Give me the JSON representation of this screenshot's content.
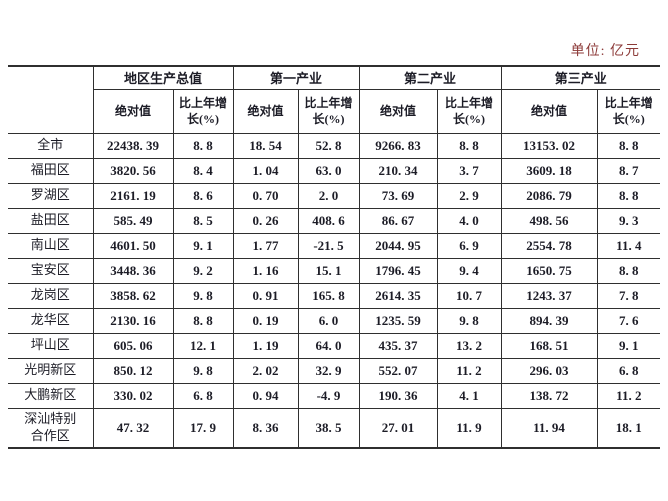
{
  "page": {
    "unit_label": "单位: 亿元"
  },
  "colors": {
    "unit_text": "#8c3a38",
    "table_text": "#1c1c26",
    "border": "#2f2f2f"
  },
  "table": {
    "header": {
      "corner": "",
      "groups": [
        "地区生产总值",
        "第一产业",
        "第二产业",
        "第三产业"
      ],
      "sub_abs": "绝对值",
      "sub_growth": "比上年增\n长(%)"
    },
    "rows": [
      {
        "name": "全市",
        "values": [
          "22438.39",
          "8.8",
          "18.54",
          "52.8",
          "9266.83",
          "8.8",
          "13153.02",
          "8.8"
        ]
      },
      {
        "name": "福田区",
        "values": [
          "3820.56",
          "8.4",
          "1.04",
          "63.0",
          "210.34",
          "3.7",
          "3609.18",
          "8.7"
        ]
      },
      {
        "name": "罗湖区",
        "values": [
          "2161.19",
          "8.6",
          "0.70",
          "2.0",
          "73.69",
          "2.9",
          "2086.79",
          "8.8"
        ]
      },
      {
        "name": "盐田区",
        "values": [
          "585.49",
          "8.5",
          "0.26",
          "408.6",
          "86.67",
          "4.0",
          "498.56",
          "9.3"
        ]
      },
      {
        "name": "南山区",
        "values": [
          "4601.50",
          "9.1",
          "1.77",
          "-21.5",
          "2044.95",
          "6.9",
          "2554.78",
          "11.4"
        ]
      },
      {
        "name": "宝安区",
        "values": [
          "3448.36",
          "9.2",
          "1.16",
          "15.1",
          "1796.45",
          "9.4",
          "1650.75",
          "8.8"
        ]
      },
      {
        "name": "龙岗区",
        "values": [
          "3858.62",
          "9.8",
          "0.91",
          "165.8",
          "2614.35",
          "10.7",
          "1243.37",
          "7.8"
        ]
      },
      {
        "name": "龙华区",
        "values": [
          "2130.16",
          "8.8",
          "0.19",
          "6.0",
          "1235.59",
          "9.8",
          "894.39",
          "7.6"
        ]
      },
      {
        "name": "坪山区",
        "values": [
          "605.06",
          "12.1",
          "1.19",
          "64.0",
          "435.37",
          "13.2",
          "168.51",
          "9.1"
        ]
      },
      {
        "name": "光明新区",
        "values": [
          "850.12",
          "9.8",
          "2.02",
          "32.9",
          "552.07",
          "11.2",
          "296.03",
          "6.8"
        ]
      },
      {
        "name": "大鹏新区",
        "values": [
          "330.02",
          "6.8",
          "0.94",
          "-4.9",
          "190.36",
          "4.1",
          "138.72",
          "11.2"
        ]
      },
      {
        "name": "深汕特别\n合作区",
        "values": [
          "47.32",
          "17.9",
          "8.36",
          "38.5",
          "27.01",
          "11.9",
          "11.94",
          "18.1"
        ]
      }
    ]
  }
}
